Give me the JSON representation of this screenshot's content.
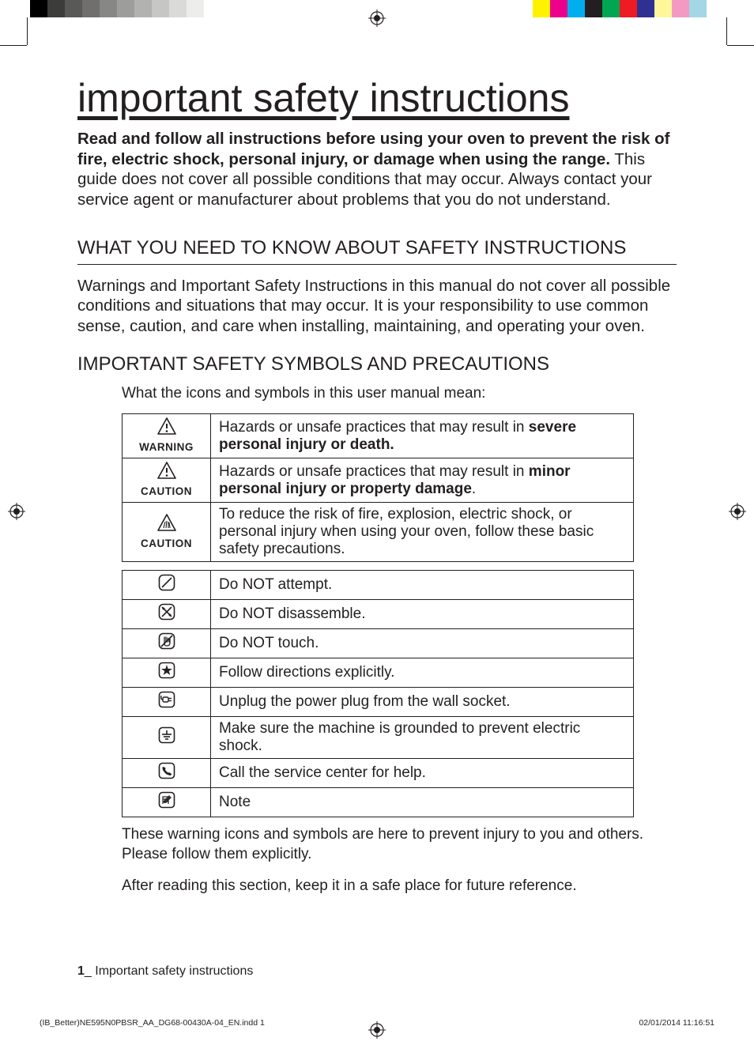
{
  "color_bars": {
    "left": [
      "#000000",
      "#3c3c3b",
      "#595958",
      "#706f6e",
      "#878786",
      "#9d9d9c",
      "#b2b2b1",
      "#c6c6c5",
      "#dadad9",
      "#ededec",
      "#ffffff"
    ],
    "right": [
      "#fff200",
      "#ec008c",
      "#00aeef",
      "#231f20",
      "#00a651",
      "#ed1c24",
      "#2e3192",
      "#fff799",
      "#f49ac1",
      "#a3d7e5",
      "#ffffff"
    ]
  },
  "title": "important safety instructions",
  "intro_bold": "Read and follow all instructions before using your oven to prevent the risk of fire, electric shock, personal injury, or damage when using the range.",
  "intro_rest": " This guide does not cover all possible conditions that may occur. Always contact your service agent or manufacturer about problems that you do not understand.",
  "section1_heading": "WHAT YOU NEED TO KNOW ABOUT SAFETY INSTRUCTIONS",
  "section1_body": "Warnings and Important Safety Instructions in this manual do not cover all possible conditions and situations that may occur. It is your responsibility to use common sense, caution, and care when installing, maintaining, and operating your oven.",
  "section2_heading": "IMPORTANT SAFETY SYMBOLS AND PRECAUTIONS",
  "lead_text": "What the icons and symbols in this user manual mean:",
  "table1": [
    {
      "label": "WARNING",
      "variant": "tri-excl",
      "desc_pre": "Hazards or unsafe practices that may result in ",
      "desc_bold": "severe personal injury or death.",
      "desc_post": ""
    },
    {
      "label": "CAUTION",
      "variant": "tri-excl",
      "desc_pre": "Hazards or unsafe practices that may result in ",
      "desc_bold": "minor personal injury or property damage",
      "desc_post": "."
    },
    {
      "label": "CAUTION",
      "variant": "tri-hand",
      "desc_pre": "To reduce the risk of fire, explosion, electric shock, or personal injury when using your oven, follow these basic safety precautions.",
      "desc_bold": "",
      "desc_post": ""
    }
  ],
  "table2": [
    {
      "icon": "no-entry",
      "desc": "Do NOT attempt."
    },
    {
      "icon": "no-disassemble",
      "desc": "Do NOT disassemble."
    },
    {
      "icon": "no-touch",
      "desc": "Do NOT touch."
    },
    {
      "icon": "star",
      "desc": "Follow directions explicitly."
    },
    {
      "icon": "unplug",
      "desc": "Unplug the power plug from the wall socket."
    },
    {
      "icon": "ground",
      "desc": "Make sure the machine is grounded to prevent electric shock."
    },
    {
      "icon": "phone",
      "desc": "Call the service center for help."
    },
    {
      "icon": "note",
      "desc": "Note"
    }
  ],
  "after_text": "These warning icons and symbols are here to prevent injury to you and others. Please follow them explicitly.",
  "after_text2": "After reading this section, keep it in a safe place for future reference.",
  "footer": {
    "page_num": "1",
    "page_sep": "_ ",
    "page_label": "Important safety instructions",
    "indd_path": "(IB_Better)NE595N0PBSR_AA_DG68-00430A-04_EN.indd   1",
    "timestamp": "02/01/2014   11:16:51"
  },
  "icon_stroke": "#231f20"
}
